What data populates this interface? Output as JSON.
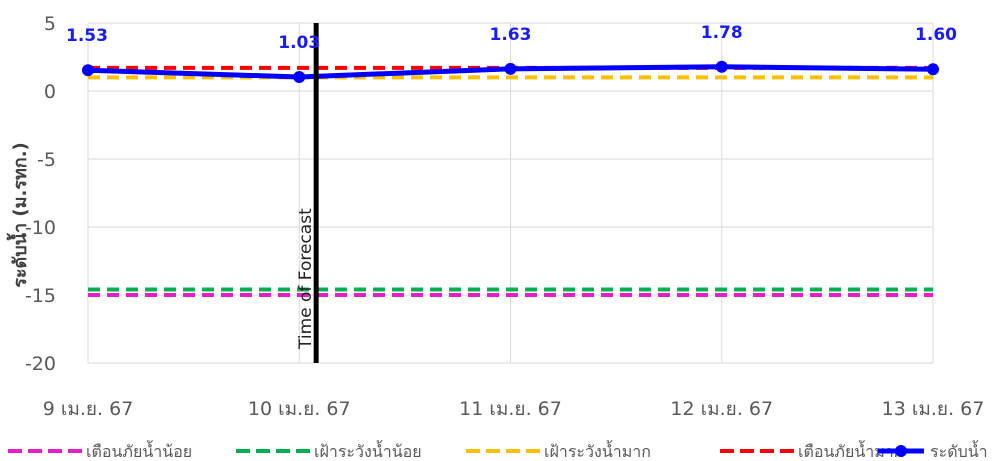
{
  "chart_data": {
    "type": "line",
    "title": "",
    "ylabel": "ระดับน้ำ (ม.รทก.)",
    "ylim": [
      -20,
      5
    ],
    "yticks": [
      5,
      0,
      -5,
      -10,
      -15,
      -20
    ],
    "categories": [
      "9 เม.ย. 67",
      "10 เม.ย. 67",
      "11 เม.ย. 67",
      "12 เม.ย. 67",
      "13 เม.ย. 67"
    ],
    "grid": true,
    "legend_position": "bottom",
    "annotation": {
      "label": "Time of Forecast",
      "x": 1.08
    },
    "series": [
      {
        "name": "เตือนภัยน้ำน้อย",
        "style": "dashed",
        "color": "#e61ec8",
        "values": [
          -15,
          -15,
          -15,
          -15,
          -15
        ]
      },
      {
        "name": "เฝ้าระวังน้ำน้อย",
        "style": "dashed",
        "color": "#00b050",
        "values": [
          -14.6,
          -14.6,
          -14.6,
          -14.6,
          -14.6
        ]
      },
      {
        "name": "เฝ้าระวังน้ำมาก",
        "style": "dashed",
        "color": "#ffc000",
        "values": [
          1.0,
          1.0,
          1.0,
          1.0,
          1.0
        ]
      },
      {
        "name": "เตือนภัยน้ำมาก",
        "style": "dashed",
        "color": "#ff0000",
        "values": [
          1.7,
          1.7,
          1.7,
          1.7,
          1.7
        ]
      },
      {
        "name": "ระดับน้ำ",
        "style": "solid",
        "color": "#0000ff",
        "values": [
          1.53,
          1.03,
          1.63,
          1.78,
          1.6
        ],
        "data_labels": [
          "1.53",
          "1.03",
          "1.63",
          "1.78",
          "1.60"
        ]
      }
    ]
  }
}
